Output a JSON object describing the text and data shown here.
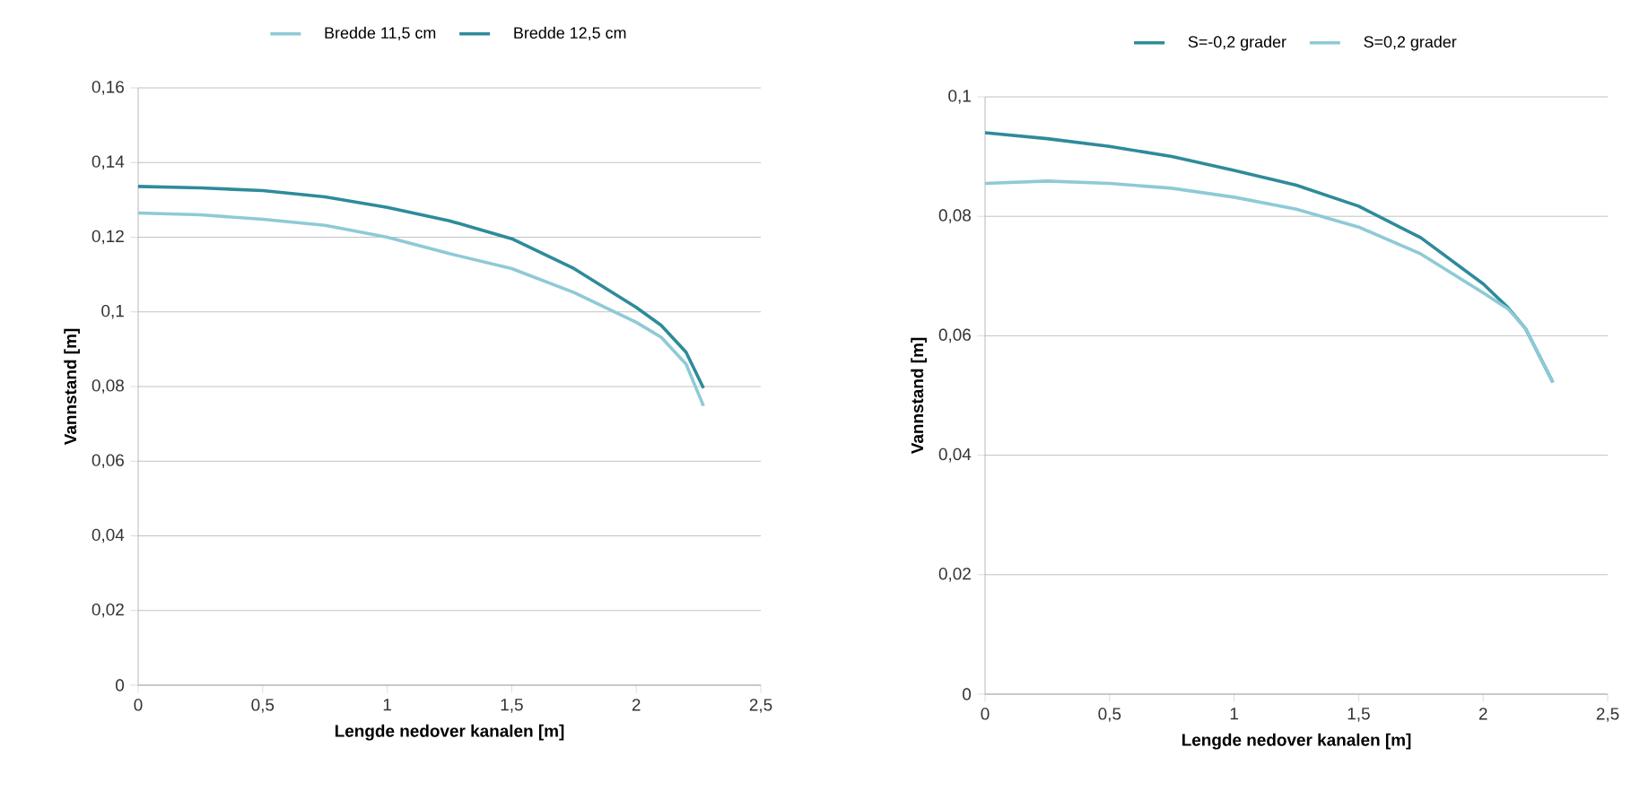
{
  "chart_data": [
    {
      "type": "line",
      "xlabel": "Lengde nedover kanalen [m]",
      "ylabel": "Vannstand [m]",
      "series": [
        {
          "name": "Bredde 11,5 cm",
          "color": "#8ecad6",
          "x": [
            0,
            0.25,
            0.5,
            0.75,
            1,
            1.25,
            1.5,
            1.75,
            2,
            2.1,
            2.2,
            2.27
          ],
          "values": [
            0.1265,
            0.126,
            0.1248,
            0.1232,
            0.12,
            0.1156,
            0.1116,
            0.1052,
            0.0972,
            0.0932,
            0.086,
            0.0748
          ]
        },
        {
          "name": "Bredde 12,5 cm",
          "color": "#2e8b9a",
          "x": [
            0,
            0.25,
            0.5,
            0.75,
            1,
            1.25,
            1.5,
            1.75,
            2,
            2.1,
            2.2,
            2.27
          ],
          "values": [
            0.1336,
            0.1332,
            0.1325,
            0.1308,
            0.128,
            0.1244,
            0.1196,
            0.1116,
            0.1012,
            0.0964,
            0.0892,
            0.0796
          ]
        }
      ],
      "xlim": [
        0,
        2.5
      ],
      "xticks": [
        0,
        {
          "value": 0.5,
          "label": "0,5"
        },
        1,
        {
          "value": 1.5,
          "label": "1,5"
        },
        2,
        {
          "value": 2.5,
          "label": "2,5"
        }
      ],
      "ylim": [
        0,
        0.16
      ],
      "yticks": [
        0,
        {
          "value": 0.02,
          "label": "0,02"
        },
        {
          "value": 0.04,
          "label": "0,04"
        },
        {
          "value": 0.06,
          "label": "0,06"
        },
        {
          "value": 0.08,
          "label": "0,08"
        },
        {
          "value": 0.1,
          "label": "0,1"
        },
        {
          "value": 0.12,
          "label": "0,12"
        },
        {
          "value": 0.14,
          "label": "0,14"
        },
        {
          "value": 0.16,
          "label": "0,16"
        }
      ],
      "grid": "y",
      "legend": "top"
    },
    {
      "type": "line",
      "xlabel": "Lengde nedover kanalen [m]",
      "ylabel": "Vannstand [m]",
      "series": [
        {
          "name": "S=-0,2 grader",
          "color": "#2e8b9a",
          "x": [
            0,
            0.25,
            0.5,
            0.75,
            1,
            1.25,
            1.5,
            1.75,
            2,
            2.1,
            2.17,
            2.28
          ],
          "values": [
            0.094,
            0.093,
            0.0917,
            0.09,
            0.0877,
            0.0852,
            0.0817,
            0.0764,
            0.0687,
            0.0647,
            0.0612,
            0.0522
          ]
        },
        {
          "name": "S=0,2 grader",
          "color": "#8ecad6",
          "x": [
            0,
            0.25,
            0.5,
            0.75,
            1,
            1.25,
            1.5,
            1.75,
            2,
            2.1,
            2.17,
            2.28
          ],
          "values": [
            0.0855,
            0.0859,
            0.0855,
            0.0847,
            0.0832,
            0.0812,
            0.0782,
            0.0737,
            0.0672,
            0.0645,
            0.0612,
            0.0522
          ]
        }
      ],
      "xlim": [
        0,
        2.5
      ],
      "xticks": [
        0,
        {
          "value": 0.5,
          "label": "0,5"
        },
        1,
        {
          "value": 1.5,
          "label": "1,5"
        },
        2,
        {
          "value": 2.5,
          "label": "2,5"
        }
      ],
      "ylim": [
        0,
        0.1
      ],
      "yticks": [
        0,
        {
          "value": 0.02,
          "label": "0,02"
        },
        {
          "value": 0.04,
          "label": "0,04"
        },
        {
          "value": 0.06,
          "label": "0,06"
        },
        {
          "value": 0.08,
          "label": "0,08"
        },
        {
          "value": 0.1,
          "label": "0,1"
        }
      ],
      "grid": "y",
      "legend": "top"
    }
  ]
}
